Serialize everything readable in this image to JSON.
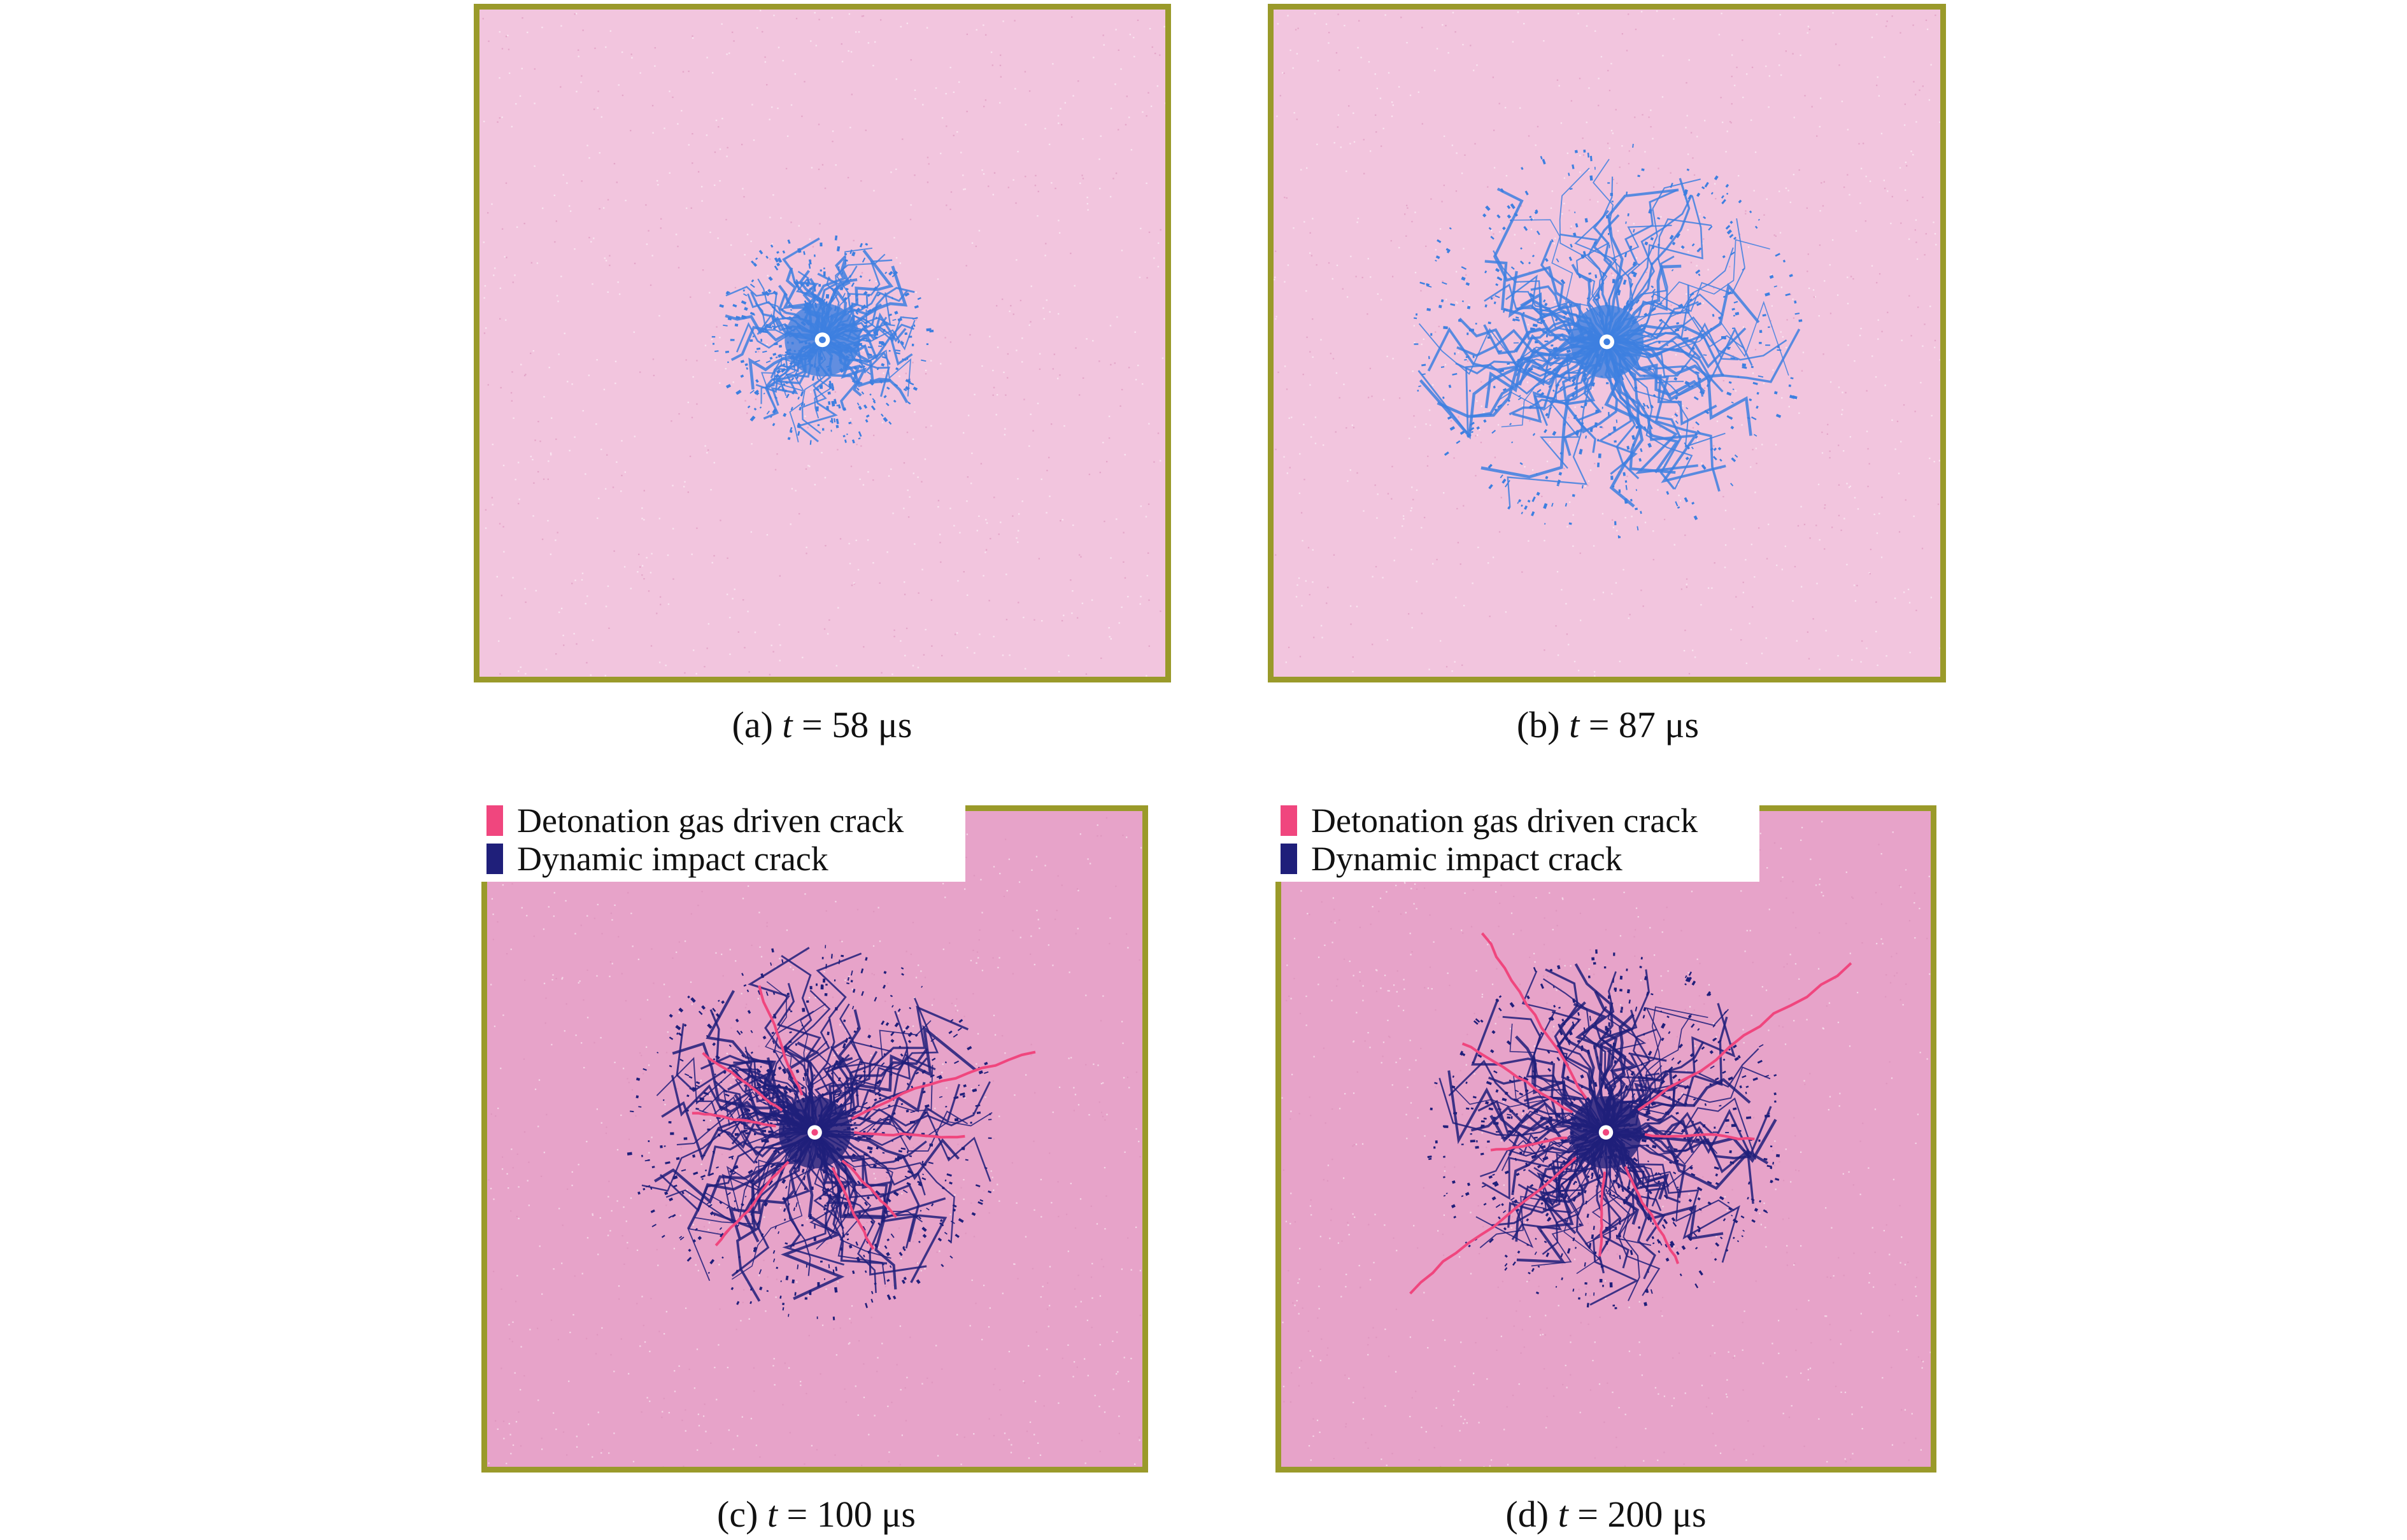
{
  "colors": {
    "rock_light": "#f2c5de",
    "rock_dark": "#e7a3c9",
    "border": "#9a9a2a",
    "crack_early": "#3d7fe0",
    "gas_crack": "#f0467e",
    "impact_crack": "#1f1f7a"
  },
  "panels": [
    {
      "label": "(a)",
      "var": "t",
      "eq": "= 58 μs",
      "value_us": 58,
      "legend": false
    },
    {
      "label": "(b)",
      "var": "t",
      "eq": "= 87 μs",
      "value_us": 87,
      "legend": false
    },
    {
      "label": "(c)",
      "var": "t",
      "eq": "= 100 μs",
      "value_us": 100,
      "legend": true
    },
    {
      "label": "(d)",
      "var": "t",
      "eq": "= 200 μs",
      "value_us": 200,
      "legend": true
    }
  ],
  "legend": {
    "gas": {
      "label": "Detonation gas driven crack",
      "color": "#f0467e"
    },
    "impact": {
      "label": "Dynamic impact crack",
      "color": "#1f1f7a"
    }
  }
}
